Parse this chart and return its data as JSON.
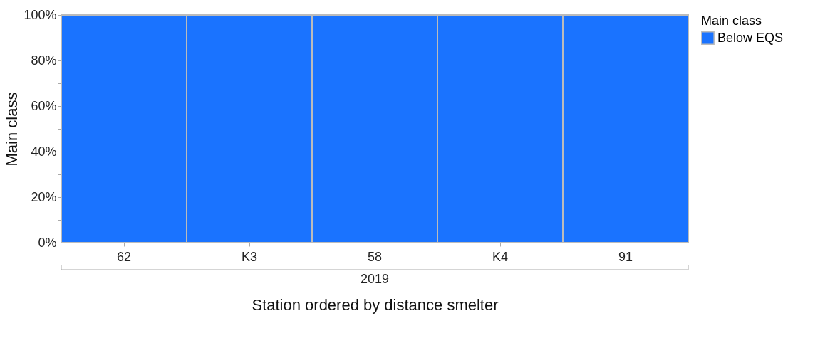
{
  "chart_data": {
    "type": "bar",
    "ylabel": "Main class",
    "xlabel": "Station ordered by distance smelter",
    "legend_title": "Main class",
    "categories": [
      "62",
      "K3",
      "58",
      "K4",
      "91"
    ],
    "series": [
      {
        "name": "Below EQS",
        "color": "#1a73ff",
        "values": [
          100,
          100,
          100,
          100,
          100
        ]
      }
    ],
    "ylim": [
      0,
      100
    ],
    "yticks": [
      {
        "value": 0,
        "label": "0%"
      },
      {
        "value": 10,
        "label": null
      },
      {
        "value": 20,
        "label": "20%"
      },
      {
        "value": 30,
        "label": null
      },
      {
        "value": 40,
        "label": "40%"
      },
      {
        "value": 50,
        "label": null
      },
      {
        "value": 60,
        "label": "60%"
      },
      {
        "value": 70,
        "label": null
      },
      {
        "value": 80,
        "label": "80%"
      },
      {
        "value": 90,
        "label": null
      },
      {
        "value": 100,
        "label": "100%"
      }
    ],
    "annotations": [
      "2019"
    ],
    "legend": "top right"
  }
}
